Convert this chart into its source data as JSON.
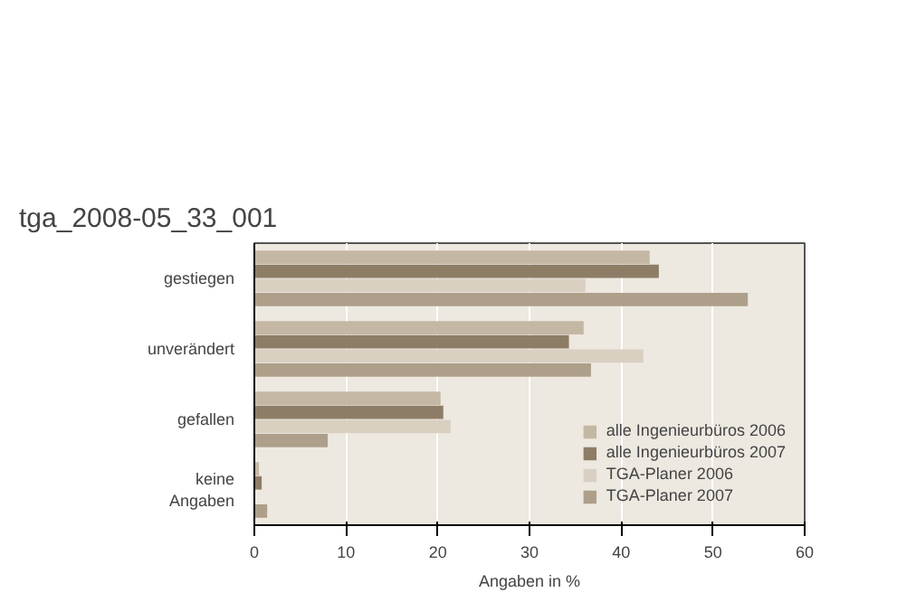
{
  "chart_data": {
    "type": "bar",
    "orientation": "horizontal",
    "title": "tga_2008-05_33_001",
    "xlabel": "Angaben in %",
    "categories": [
      "gestiegen",
      "unverändert",
      "gefallen",
      "keine\nAngaben"
    ],
    "series": [
      {
        "name": "alle Ingenieurbüros 2006",
        "color": "#c4b7a3",
        "values": [
          43.1,
          35.9,
          20.3,
          0.5
        ]
      },
      {
        "name": "alle Ingenieurbüros 2007",
        "color": "#8e7d66",
        "values": [
          44.1,
          34.3,
          20.6,
          0.8
        ]
      },
      {
        "name": "TGA-Planer 2006",
        "color": "#d9d0c2",
        "values": [
          36.1,
          42.4,
          21.4,
          0
        ]
      },
      {
        "name": "TGA-Planer 2007",
        "color": "#ad9f8a",
        "values": [
          53.8,
          36.7,
          8.0,
          1.4
        ]
      }
    ],
    "xlim": [
      0,
      60
    ],
    "xticks": [
      0,
      10,
      20,
      30,
      40,
      50,
      60
    ],
    "grid": "x",
    "legend": "bottom right"
  }
}
